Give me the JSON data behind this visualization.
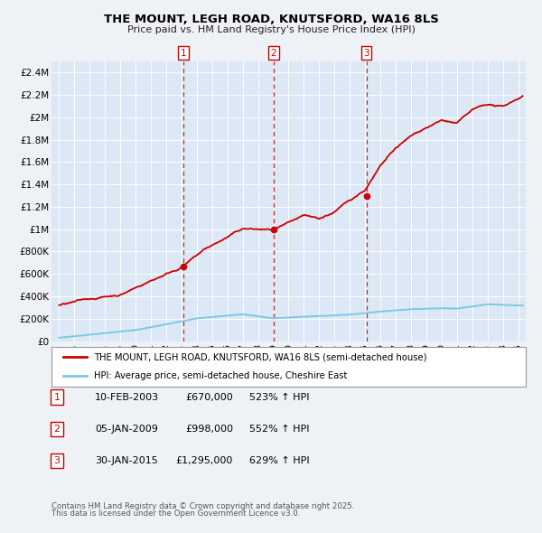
{
  "title": "THE MOUNT, LEGH ROAD, KNUTSFORD, WA16 8LS",
  "subtitle": "Price paid vs. HM Land Registry's House Price Index (HPI)",
  "background_color": "#eef2f7",
  "plot_bg_color": "#dce8f5",
  "grid_color": "#ffffff",
  "ylim": [
    0,
    2500000
  ],
  "xlim_start": 1994.5,
  "xlim_end": 2025.5,
  "ytick_labels": [
    "£0",
    "£200K",
    "£400K",
    "£600K",
    "£800K",
    "£1M",
    "£1.2M",
    "£1.4M",
    "£1.6M",
    "£1.8M",
    "£2M",
    "£2.2M",
    "£2.4M"
  ],
  "ytick_values": [
    0,
    200000,
    400000,
    600000,
    800000,
    1000000,
    1200000,
    1400000,
    1600000,
    1800000,
    2000000,
    2200000,
    2400000
  ],
  "hpi_color": "#7ec8e3",
  "price_color": "#cc0000",
  "marker_color": "#cc0000",
  "dashed_line_color": "#cc0000",
  "sale_points": [
    {
      "year": 2003.1,
      "price": 670000,
      "label": "1"
    },
    {
      "year": 2009.02,
      "price": 998000,
      "label": "2"
    },
    {
      "year": 2015.08,
      "price": 1295000,
      "label": "3"
    }
  ],
  "legend_line1": "THE MOUNT, LEGH ROAD, KNUTSFORD, WA16 8LS (semi-detached house)",
  "legend_line2": "HPI: Average price, semi-detached house, Cheshire East",
  "table_rows": [
    {
      "num": "1",
      "date": "10-FEB-2003",
      "price": "£670,000",
      "hpi": "523% ↑ HPI"
    },
    {
      "num": "2",
      "date": "05-JAN-2009",
      "price": "£998,000",
      "hpi": "552% ↑ HPI"
    },
    {
      "num": "3",
      "date": "30-JAN-2015",
      "price": "£1,295,000",
      "hpi": "629% ↑ HPI"
    }
  ],
  "footer1": "Contains HM Land Registry data © Crown copyright and database right 2025.",
  "footer2": "This data is licensed under the Open Government Licence v3.0."
}
